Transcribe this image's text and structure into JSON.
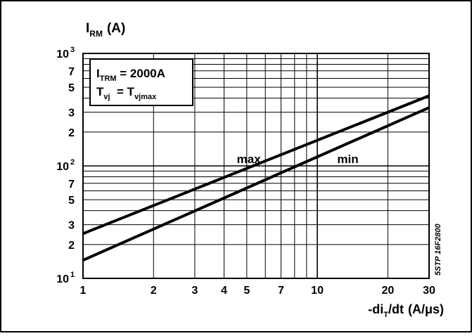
{
  "chart_data": {
    "type": "line",
    "title": "",
    "ylabel": {
      "main": "I",
      "sub": "RM",
      "unit": "(A)"
    },
    "xlabel": {
      "prefix": "-di",
      "sub": "T",
      "suffix": "/dt",
      "unit": "(A/μs)"
    },
    "x_scale": "log",
    "y_scale": "log",
    "xlim": [
      1,
      30
    ],
    "ylim": [
      10,
      1000
    ],
    "grid": true,
    "x_tick_labels": [
      {
        "value": 1,
        "label": "1"
      },
      {
        "value": 2,
        "label": "2"
      },
      {
        "value": 3,
        "label": "3"
      },
      {
        "value": 4,
        "label": "4"
      },
      {
        "value": 5,
        "label": "5"
      },
      {
        "value": 7,
        "label": "7"
      },
      {
        "value": 10,
        "label": "10"
      },
      {
        "value": 20,
        "label": "20"
      },
      {
        "value": 30,
        "label": "30"
      }
    ],
    "y_tick_labels": [
      {
        "value": 10,
        "base": "10",
        "exp": "1"
      },
      {
        "value": 20,
        "base": "2",
        "exp": ""
      },
      {
        "value": 30,
        "base": "3",
        "exp": ""
      },
      {
        "value": 50,
        "base": "5",
        "exp": ""
      },
      {
        "value": 70,
        "base": "7",
        "exp": ""
      },
      {
        "value": 100,
        "base": "10",
        "exp": "2"
      },
      {
        "value": 200,
        "base": "2",
        "exp": ""
      },
      {
        "value": 300,
        "base": "3",
        "exp": ""
      },
      {
        "value": 500,
        "base": "5",
        "exp": ""
      },
      {
        "value": 700,
        "base": "7",
        "exp": ""
      },
      {
        "value": 1000,
        "base": "10",
        "exp": "3"
      }
    ],
    "series": [
      {
        "name": "max",
        "label_at": [
          5.1,
          106
        ],
        "x": [
          1,
          30
        ],
        "y": [
          25,
          420
        ],
        "color": "#000000"
      },
      {
        "name": "min",
        "label_at": [
          13.5,
          106
        ],
        "x": [
          1,
          30
        ],
        "y": [
          14.5,
          330
        ],
        "color": "#000000"
      }
    ],
    "legend": {
      "position": "top-left",
      "lines": [
        {
          "main": "I",
          "sub": "TRM",
          "text": " = 2000A"
        },
        {
          "main": "T",
          "sub": "vj",
          "text": "  = T",
          "sub2": "vjmax"
        }
      ]
    },
    "annotation": "5STP 16F2800"
  }
}
